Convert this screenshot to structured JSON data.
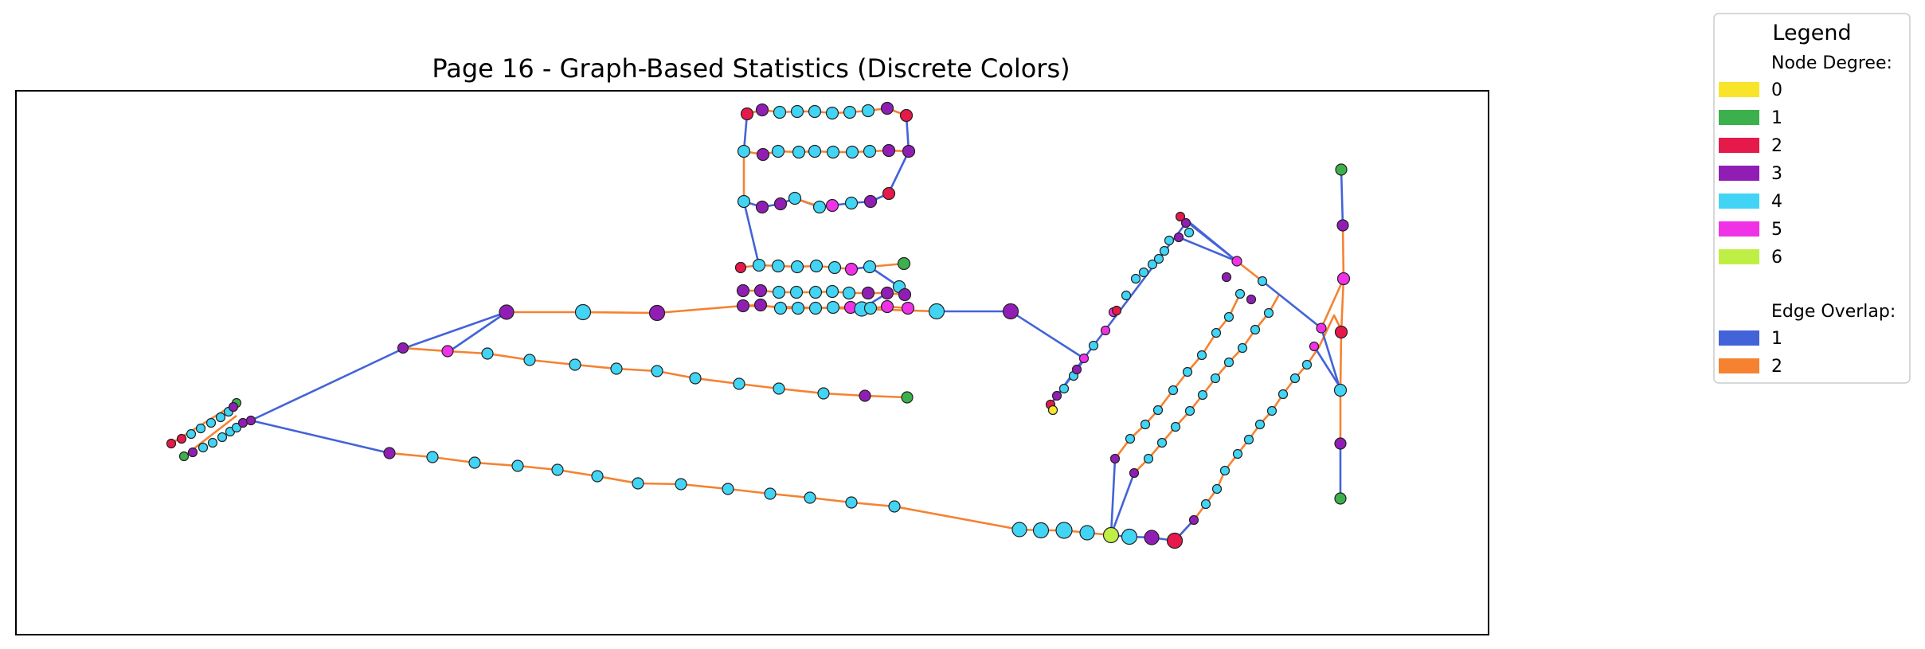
{
  "figure": {
    "title": "Page 16 - Graph-Based Statistics (Discrete Colors)"
  },
  "legend": {
    "title": "Legend",
    "degree_heading": "Node Degree:",
    "degree_entries": [
      {
        "label": "0",
        "color": "#f8e52a"
      },
      {
        "label": "1",
        "color": "#3cb04c"
      },
      {
        "label": "2",
        "color": "#e6194b"
      },
      {
        "label": "3",
        "color": "#911eb4"
      },
      {
        "label": "4",
        "color": "#42d4f4"
      },
      {
        "label": "5",
        "color": "#f032e6"
      },
      {
        "label": "6",
        "color": "#bfef45"
      }
    ],
    "overlap_heading": "Edge Overlap:",
    "overlap_entries": [
      {
        "label": "1",
        "color": "#4363d8"
      },
      {
        "label": "2",
        "color": "#f58231"
      }
    ]
  }
}
